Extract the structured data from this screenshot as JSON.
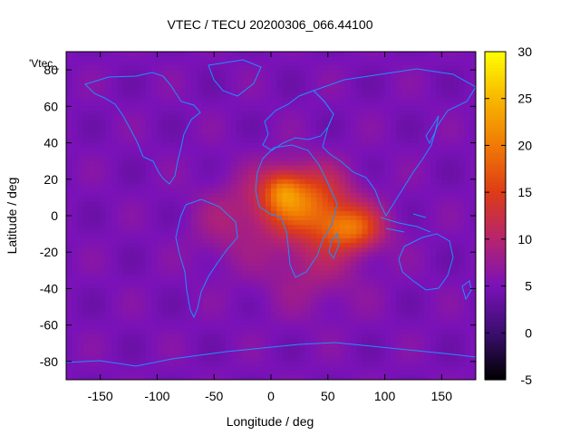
{
  "chart_data": {
    "type": "heatmap",
    "title": "VTEC / TECU 20200306_066.44100",
    "xlabel": "Longitude / deg",
    "ylabel": "Latitude / deg",
    "key_label": "'Vtec_",
    "xlim": [
      -180,
      180
    ],
    "ylim": [
      -90,
      90
    ],
    "xticks": [
      -150,
      -100,
      -50,
      0,
      50,
      100,
      150
    ],
    "yticks": [
      -80,
      -60,
      -40,
      -20,
      0,
      20,
      40,
      60,
      80
    ],
    "colorbar": {
      "range": [
        -5,
        30
      ],
      "ticks": [
        -5,
        0,
        5,
        10,
        15,
        20,
        25,
        30
      ],
      "palette": [
        "#000000",
        "#3b0e6e",
        "#7a12b8",
        "#b6246e",
        "#dd3c17",
        "#f07a05",
        "#f8b700",
        "#ffff00"
      ]
    },
    "background_value": 5,
    "ionization_peaks": [
      {
        "lon": 25,
        "lat": 8,
        "amp": 14,
        "sx": 40,
        "sy": 18
      },
      {
        "lon": 70,
        "lat": -7,
        "amp": 12,
        "sx": 28,
        "sy": 12
      },
      {
        "lon": 10,
        "lat": 14,
        "amp": 6,
        "sx": 15,
        "sy": 10
      },
      {
        "lon": 35,
        "lat": -25,
        "amp": 4,
        "sx": 45,
        "sy": 25
      },
      {
        "lon": -40,
        "lat": -5,
        "amp": 3,
        "sx": 30,
        "sy": 22
      }
    ],
    "coastline_color": "#1e90ff"
  }
}
